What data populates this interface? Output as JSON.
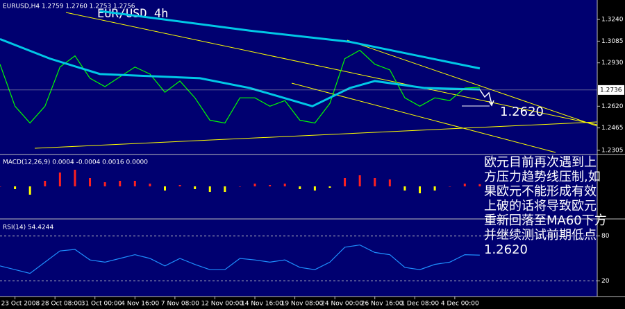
{
  "header": {
    "symbol_info": "EURUSD,H4  1.2759 1.2760 1.2753 1.2756",
    "title": "EUR/USD 4h"
  },
  "annotation": {
    "level": "1.2620",
    "lines": [
      "欧元目前再次遇到上",
      "方压力趋势线压制,如",
      "果欧元不能形成有效",
      "上破的话将导致欧元",
      "重新回落至MA60下方",
      "并继续测试前期低点",
      "1.2620"
    ]
  },
  "chart_data": [
    {
      "type": "line",
      "current_price": 1.2736,
      "ylim": [
        1.228,
        1.3379
      ],
      "xlim": [
        0,
        239
      ],
      "yticks": [
        {
          "value": 1.324,
          "label": "1.3240"
        },
        1.3085,
        {
          "value": 1.293,
          "label": "1.2930"
        },
        {
          "value": 1.262,
          "label": "1.2620"
        },
        1.2465,
        1.2305
      ],
      "series": [
        {
          "color": "#00ff00",
          "x": [
            0,
            6,
            12,
            18,
            24,
            30,
            36,
            42,
            48,
            54,
            60,
            66,
            72,
            78,
            84,
            90,
            96,
            102,
            108,
            114,
            120,
            126,
            132,
            138,
            144,
            150,
            156,
            162,
            168,
            174,
            180,
            186,
            192
          ],
          "values": [
            1.292,
            1.262,
            1.25,
            1.262,
            1.29,
            1.298,
            1.282,
            1.276,
            1.283,
            1.29,
            1.285,
            1.272,
            1.28,
            1.268,
            1.252,
            1.25,
            1.268,
            1.268,
            1.262,
            1.266,
            1.252,
            1.25,
            1.264,
            1.296,
            1.302,
            1.292,
            1.288,
            1.268,
            1.262,
            1.268,
            1.266,
            1.275,
            1.2756
          ]
        },
        {
          "color": "#00c8e6",
          "x": [
            40,
            100,
            140,
            192
          ],
          "values": [
            1.33,
            1.316,
            1.308,
            1.289
          ]
        },
        {
          "color": "#00c8e6",
          "x": [
            0,
            20,
            40,
            80,
            100,
            125,
            140,
            150,
            170,
            192
          ],
          "values": [
            1.31,
            1.296,
            1.285,
            1.282,
            1.275,
            1.262,
            1.275,
            1.28,
            1.275,
            1.274
          ]
        }
      ]
    },
    {
      "type": "bar",
      "label": "MACD(12,26,9) 0.0004 -0.0004 0.0016 0.0000",
      "ylim": [
        -0.022,
        0.022
      ],
      "xlim": [
        0,
        239
      ],
      "up_color": "#ff2020",
      "down_color": "#ffff00",
      "x": [
        0,
        6,
        12,
        18,
        24,
        30,
        36,
        42,
        48,
        54,
        60,
        66,
        72,
        78,
        84,
        90,
        96,
        102,
        108,
        114,
        120,
        126,
        132,
        138,
        144,
        150,
        156,
        162,
        168,
        174,
        180,
        186,
        192
      ],
      "values": [
        0,
        -0.002,
        -0.006,
        0.004,
        0.01,
        0.012,
        0.006,
        0.003,
        0.004,
        0.004,
        0.002,
        -0.003,
        0.001,
        -0.002,
        -0.004,
        -0.004,
        0,
        0.002,
        0.001,
        0.002,
        -0.002,
        -0.003,
        -0.001,
        0.006,
        0.008,
        0.006,
        0.005,
        -0.003,
        -0.005,
        -0.003,
        0,
        0.002,
        0.0016
      ]
    },
    {
      "type": "line",
      "label": "RSI(14) 54.4244",
      "ylim": [
        0,
        100
      ],
      "xlim": [
        0,
        239
      ],
      "yticks": [
        80,
        20
      ],
      "xticks": [
        {
          "value": 6,
          "label": "23 Oct 2008"
        },
        {
          "value": 22,
          "label": "28 Oct 08:00"
        },
        {
          "value": 38,
          "label": "31 Oct 00:00"
        },
        {
          "value": 54,
          "label": "4 Nov 16:00"
        },
        {
          "value": 70,
          "label": "7 Nov 08:00"
        },
        {
          "value": 86,
          "label": "12 Nov 00:00"
        },
        {
          "value": 102,
          "label": "14 Nov 16:00"
        },
        {
          "value": 118,
          "label": "19 Nov 08:00"
        },
        {
          "value": 134,
          "label": "24 Nov 00:00"
        },
        {
          "value": 150,
          "label": "26 Nov 16:00"
        },
        {
          "value": 166,
          "label": "1 Dec 08:00"
        },
        {
          "value": 182,
          "label": "4 Dec 00:00"
        }
      ],
      "series": [
        {
          "color": "#1e90ff",
          "x": [
            0,
            6,
            12,
            18,
            24,
            30,
            36,
            42,
            48,
            54,
            60,
            66,
            72,
            78,
            84,
            90,
            96,
            102,
            108,
            114,
            120,
            126,
            132,
            138,
            144,
            150,
            156,
            162,
            168,
            174,
            180,
            186,
            192
          ],
          "values": [
            40,
            35,
            30,
            45,
            60,
            62,
            48,
            45,
            50,
            55,
            50,
            40,
            50,
            42,
            35,
            35,
            50,
            48,
            45,
            48,
            38,
            35,
            45,
            65,
            68,
            58,
            55,
            38,
            35,
            42,
            45,
            55,
            54.4244
          ]
        }
      ]
    }
  ]
}
